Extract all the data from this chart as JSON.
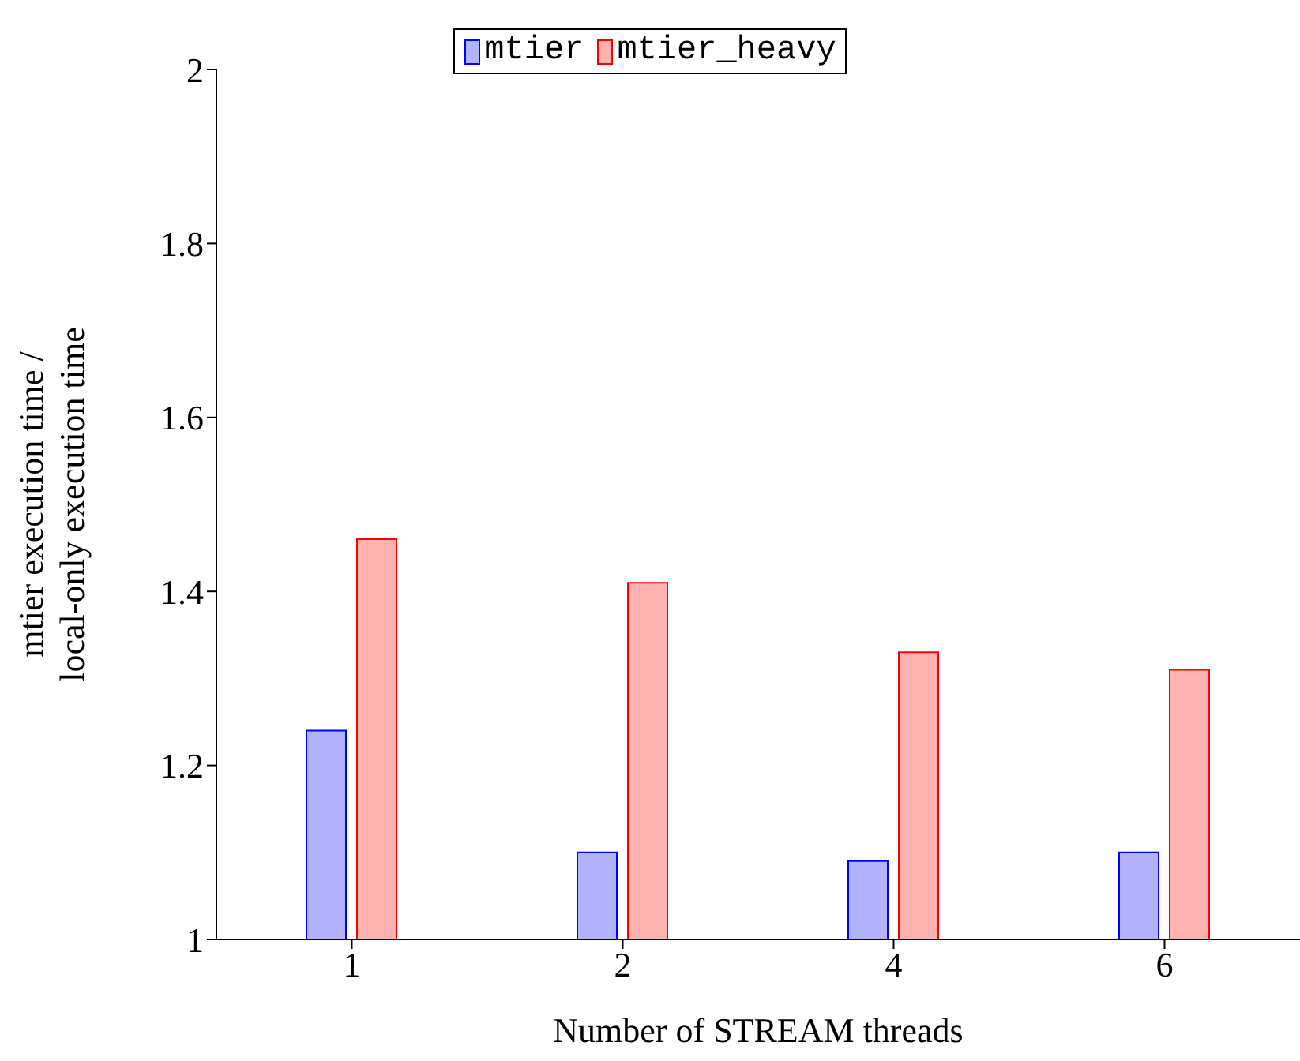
{
  "chart_data": {
    "type": "bar",
    "xlabel": "Number of STREAM threads",
    "ylabel": "mtier execution time / local-only execution time",
    "categories": [
      "1",
      "2",
      "4",
      "6"
    ],
    "series": [
      {
        "name": "mtier",
        "color": "#0000ff",
        "values": [
          1.24,
          1.1,
          1.09,
          1.1
        ]
      },
      {
        "name": "mtier_heavy",
        "color": "#ff0000",
        "values": [
          1.46,
          1.41,
          1.33,
          1.31
        ]
      }
    ],
    "ylim": [
      1,
      2
    ],
    "yticks": [
      1,
      1.2,
      1.4,
      1.6,
      1.8,
      2
    ],
    "legend": "top"
  }
}
